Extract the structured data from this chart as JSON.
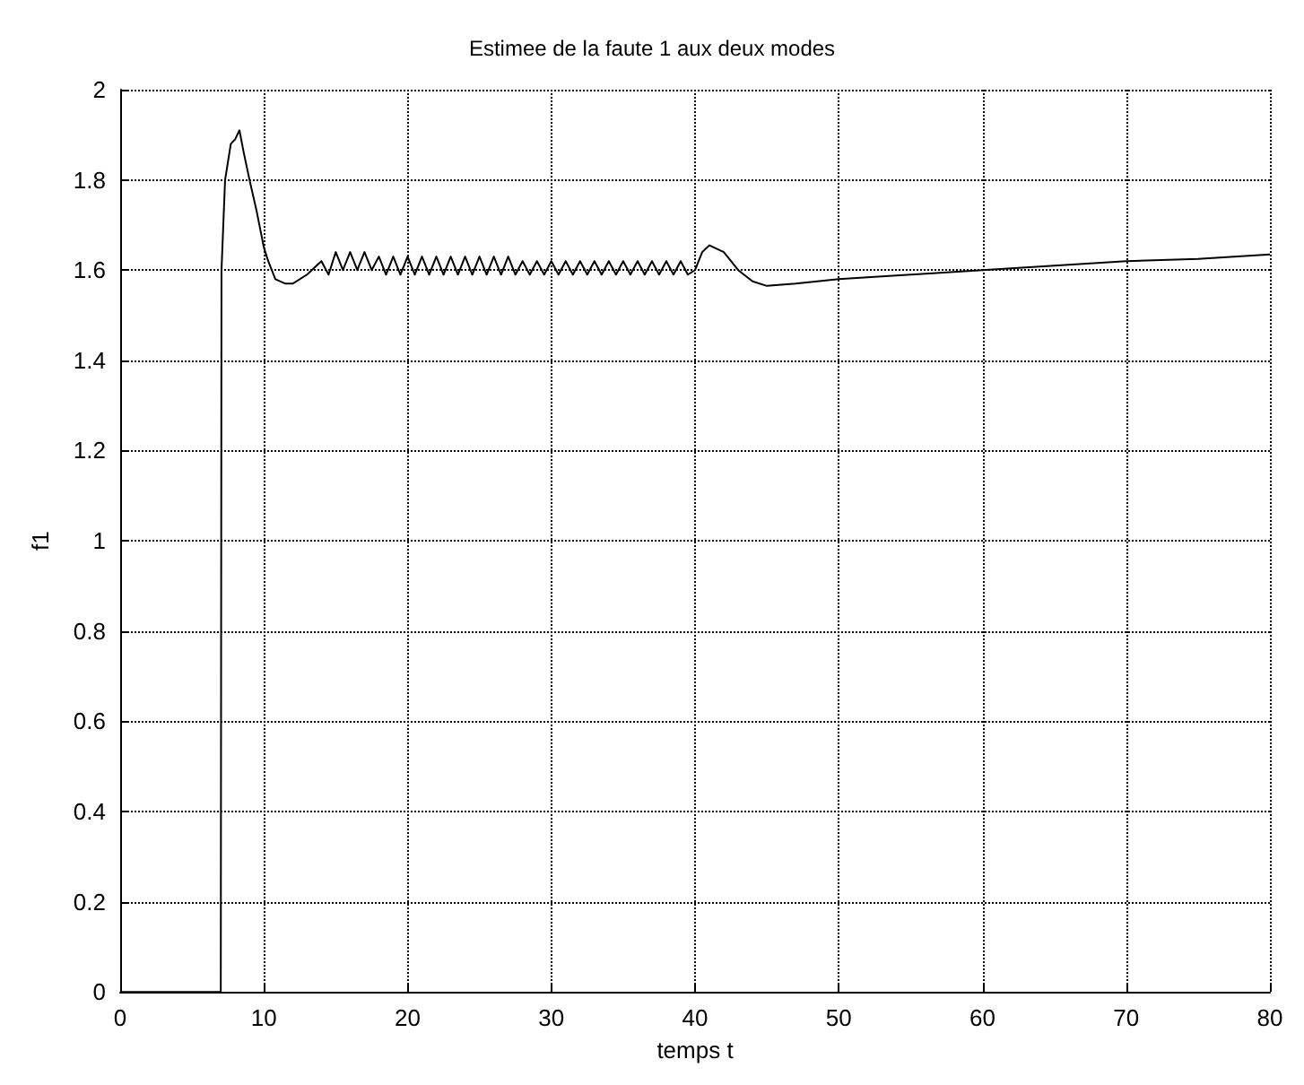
{
  "chart_data": {
    "type": "line",
    "title": "Estimee de la faute 1 aux deux modes",
    "xlabel": "temps t",
    "ylabel": "f1",
    "xlim": [
      0,
      80
    ],
    "ylim": [
      0,
      2
    ],
    "xticks": [
      0,
      10,
      20,
      30,
      40,
      50,
      60,
      70,
      80
    ],
    "yticks": [
      0,
      0.2,
      0.4,
      0.6,
      0.8,
      1,
      1.2,
      1.4,
      1.6,
      1.8,
      2
    ],
    "grid": true,
    "line_style": "solid",
    "marker": "none",
    "series": [
      {
        "color": "#000000",
        "x": [
          0,
          6.9,
          7,
          7.05,
          7.3,
          7.7,
          8,
          8.3,
          8.6,
          9,
          9.5,
          10,
          10.3,
          10.8,
          11.5,
          12,
          13,
          14,
          14.5,
          15,
          15.5,
          16,
          16.5,
          17,
          17.5,
          18,
          18.5,
          19,
          19.5,
          20,
          20.5,
          21,
          21.5,
          22,
          22.5,
          23,
          23.5,
          24,
          24.5,
          25,
          25.5,
          26,
          26.5,
          27,
          27.5,
          28,
          28.5,
          29,
          29.5,
          30,
          30.5,
          31,
          31.5,
          32,
          32.5,
          33,
          33.5,
          34,
          34.5,
          35,
          35.5,
          36,
          36.5,
          37,
          37.5,
          38,
          38.5,
          39,
          39.5,
          40,
          40.5,
          41,
          42,
          43,
          44,
          45,
          47,
          50,
          55,
          60,
          65,
          70,
          75,
          80
        ],
        "values": [
          0,
          0,
          0,
          1.6,
          1.8,
          1.88,
          1.89,
          1.91,
          1.86,
          1.8,
          1.73,
          1.65,
          1.62,
          1.58,
          1.57,
          1.57,
          1.59,
          1.62,
          1.59,
          1.64,
          1.6,
          1.64,
          1.6,
          1.64,
          1.6,
          1.63,
          1.59,
          1.63,
          1.59,
          1.63,
          1.59,
          1.63,
          1.59,
          1.63,
          1.59,
          1.63,
          1.59,
          1.63,
          1.59,
          1.63,
          1.59,
          1.63,
          1.59,
          1.63,
          1.59,
          1.62,
          1.59,
          1.62,
          1.59,
          1.62,
          1.59,
          1.62,
          1.59,
          1.62,
          1.59,
          1.62,
          1.59,
          1.62,
          1.59,
          1.62,
          1.59,
          1.62,
          1.59,
          1.62,
          1.59,
          1.62,
          1.59,
          1.62,
          1.59,
          1.6,
          1.64,
          1.655,
          1.64,
          1.6,
          1.575,
          1.565,
          1.57,
          1.58,
          1.59,
          1.6,
          1.61,
          1.62,
          1.625,
          1.635
        ]
      }
    ]
  }
}
